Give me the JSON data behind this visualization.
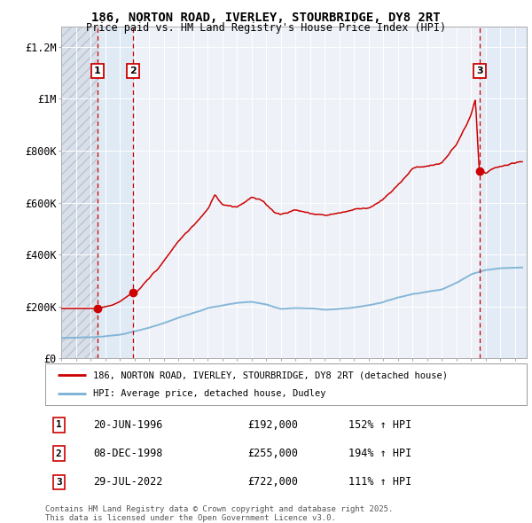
{
  "title_line1": "186, NORTON ROAD, IVERLEY, STOURBRIDGE, DY8 2RT",
  "title_line2": "Price paid vs. HM Land Registry's House Price Index (HPI)",
  "legend_line1": "186, NORTON ROAD, IVERLEY, STOURBRIDGE, DY8 2RT (detached house)",
  "legend_line2": "HPI: Average price, detached house, Dudley",
  "footer": "Contains HM Land Registry data © Crown copyright and database right 2025.\nThis data is licensed under the Open Government Licence v3.0.",
  "transactions": [
    {
      "num": 1,
      "date": "20-JUN-1996",
      "date_x": 1996.47,
      "price": 192000,
      "pct": "152%",
      "dir": "↑"
    },
    {
      "num": 2,
      "date": "08-DEC-1998",
      "date_x": 1998.93,
      "price": 255000,
      "pct": "194%",
      "dir": "↑"
    },
    {
      "num": 3,
      "date": "29-JUL-2022",
      "date_x": 2022.57,
      "price": 722000,
      "pct": "111%",
      "dir": "↑"
    }
  ],
  "ylim": [
    0,
    1280000
  ],
  "xlim": [
    1994.0,
    2025.8
  ],
  "yticks": [
    0,
    200000,
    400000,
    600000,
    800000,
    1000000,
    1200000
  ],
  "ytick_labels": [
    "£0",
    "£200K",
    "£400K",
    "£600K",
    "£800K",
    "£1M",
    "£1.2M"
  ],
  "background_color": "#ffffff",
  "plot_bg_color": "#eef2f8",
  "grid_color": "#ffffff",
  "red_line_color": "#cc0000",
  "blue_line_color": "#7ab0d4",
  "dashed_line_color": "#cc0000",
  "marker_color": "#cc0000",
  "hpi_base_points_x": [
    1994.0,
    1995.0,
    1996.0,
    1997.0,
    1998.0,
    1999.0,
    2000.0,
    2001.0,
    2002.0,
    2003.0,
    2004.0,
    2005.0,
    2006.0,
    2007.0,
    2008.0,
    2009.0,
    2010.0,
    2011.0,
    2012.0,
    2013.0,
    2014.0,
    2015.0,
    2016.0,
    2017.0,
    2018.0,
    2019.0,
    2020.0,
    2021.0,
    2022.0,
    2023.0,
    2024.0,
    2025.5
  ],
  "hpi_base_points_y": [
    78000,
    80000,
    82000,
    86000,
    92000,
    105000,
    118000,
    135000,
    155000,
    175000,
    195000,
    205000,
    215000,
    220000,
    210000,
    192000,
    196000,
    194000,
    190000,
    192000,
    198000,
    207000,
    220000,
    238000,
    252000,
    262000,
    270000,
    298000,
    330000,
    348000,
    355000,
    358000
  ],
  "prop_base_points_x": [
    1994.0,
    1996.0,
    1996.47,
    1996.8,
    1997.5,
    1998.0,
    1998.93,
    1999.3,
    2000.0,
    2001.0,
    2002.0,
    2003.0,
    2004.0,
    2004.5,
    2005.0,
    2006.0,
    2006.5,
    2007.0,
    2007.8,
    2008.5,
    2009.0,
    2009.5,
    2010.0,
    2011.0,
    2012.0,
    2013.0,
    2014.0,
    2015.0,
    2016.0,
    2017.0,
    2018.0,
    2019.0,
    2020.0,
    2021.0,
    2022.0,
    2022.3,
    2022.57,
    2022.65,
    2022.8,
    2023.0,
    2023.5,
    2024.0,
    2025.0,
    2025.5
  ],
  "prop_base_points_y": [
    192000,
    192000,
    192000,
    196000,
    205000,
    218000,
    255000,
    270000,
    310000,
    375000,
    450000,
    510000,
    570000,
    630000,
    595000,
    590000,
    610000,
    630000,
    610000,
    575000,
    565000,
    575000,
    585000,
    570000,
    565000,
    575000,
    590000,
    600000,
    630000,
    680000,
    750000,
    760000,
    770000,
    840000,
    950000,
    1010000,
    722000,
    740000,
    730000,
    720000,
    735000,
    745000,
    750000,
    755000
  ]
}
